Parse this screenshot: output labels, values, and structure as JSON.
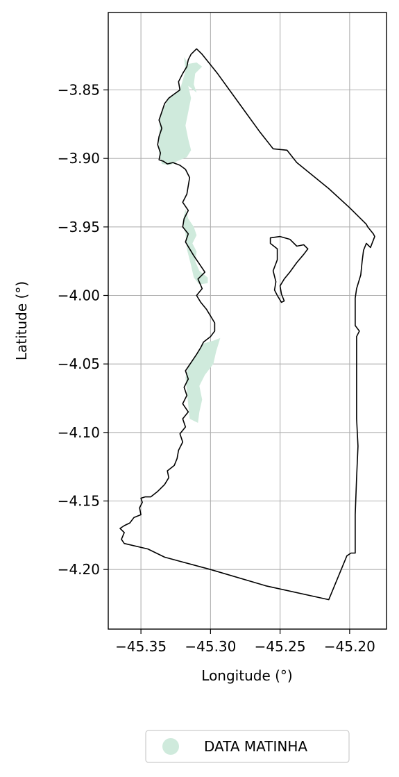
{
  "chart_data": {
    "type": "map",
    "xlabel": "Longitude (°)",
    "ylabel": "Latitude (°)",
    "xlim": [
      -45.3735,
      -45.1735
    ],
    "ylim": [
      -4.2435,
      -3.7935
    ],
    "x_ticks": [
      -45.35,
      -45.3,
      -45.25,
      -45.2
    ],
    "x_tick_labels": [
      "−45.35",
      "−45.30",
      "−45.25",
      "−45.20"
    ],
    "y_ticks": [
      -3.85,
      -3.9,
      -3.95,
      -4.0,
      -4.05,
      -4.1,
      -4.15,
      -4.2
    ],
    "y_tick_labels": [
      "−3.85",
      "−3.90",
      "−3.95",
      "−4.00",
      "−4.05",
      "−4.10",
      "−4.15",
      "−4.20"
    ],
    "grid": true,
    "legend": {
      "position": "bottom-center",
      "entries": [
        {
          "label": "DATA MATINHA",
          "color": "#cfeadc"
        }
      ]
    },
    "boundary_color": "#000000",
    "area_color": "#cfeadc",
    "boundary": [
      [
        -45.31,
        -3.82
      ],
      [
        -45.306,
        -3.824
      ],
      [
        -45.295,
        -3.838
      ],
      [
        -45.285,
        -3.852
      ],
      [
        -45.275,
        -3.866
      ],
      [
        -45.265,
        -3.88
      ],
      [
        -45.255,
        -3.893
      ],
      [
        -45.245,
        -3.894
      ],
      [
        -45.238,
        -3.903
      ],
      [
        -45.215,
        -3.922
      ],
      [
        -45.2,
        -3.936
      ],
      [
        -45.188,
        -3.948
      ],
      [
        -45.187,
        -3.95
      ],
      [
        -45.183,
        -3.955
      ],
      [
        -45.182,
        -3.957
      ],
      [
        -45.185,
        -3.965
      ],
      [
        -45.188,
        -3.962
      ],
      [
        -45.19,
        -3.967
      ],
      [
        -45.191,
        -3.975
      ],
      [
        -45.192,
        -3.985
      ],
      [
        -45.195,
        -3.995
      ],
      [
        -45.196,
        -4.002
      ],
      [
        -45.196,
        -4.01
      ],
      [
        -45.196,
        -4.022
      ],
      [
        -45.193,
        -4.026
      ],
      [
        -45.195,
        -4.03
      ],
      [
        -45.195,
        -4.06
      ],
      [
        -45.195,
        -4.09
      ],
      [
        -45.194,
        -4.11
      ],
      [
        -45.195,
        -4.133
      ],
      [
        -45.196,
        -4.16
      ],
      [
        -45.196,
        -4.188
      ],
      [
        -45.199,
        -4.188
      ],
      [
        -45.202,
        -4.19
      ],
      [
        -45.215,
        -4.222
      ],
      [
        -45.26,
        -4.212
      ],
      [
        -45.3,
        -4.2
      ],
      [
        -45.333,
        -4.191
      ],
      [
        -45.345,
        -4.185
      ],
      [
        -45.362,
        -4.181
      ],
      [
        -45.364,
        -4.178
      ],
      [
        -45.362,
        -4.173
      ],
      [
        -45.365,
        -4.17
      ],
      [
        -45.362,
        -4.168
      ],
      [
        -45.358,
        -4.166
      ],
      [
        -45.355,
        -4.162
      ],
      [
        -45.35,
        -4.16
      ],
      [
        -45.351,
        -4.155
      ],
      [
        -45.349,
        -4.151
      ],
      [
        -45.35,
        -4.148
      ],
      [
        -45.347,
        -4.147
      ],
      [
        -45.343,
        -4.147
      ],
      [
        -45.338,
        -4.143
      ],
      [
        -45.333,
        -4.138
      ],
      [
        -45.33,
        -4.133
      ],
      [
        -45.331,
        -4.128
      ],
      [
        -45.326,
        -4.124
      ],
      [
        -45.324,
        -4.119
      ],
      [
        -45.323,
        -4.113
      ],
      [
        -45.32,
        -4.107
      ],
      [
        -45.322,
        -4.101
      ],
      [
        -45.318,
        -4.096
      ],
      [
        -45.32,
        -4.09
      ],
      [
        -45.316,
        -4.085
      ],
      [
        -45.32,
        -4.079
      ],
      [
        -45.317,
        -4.073
      ],
      [
        -45.319,
        -4.067
      ],
      [
        -45.316,
        -4.061
      ],
      [
        -45.318,
        -4.055
      ],
      [
        -45.314,
        -4.049
      ],
      [
        -45.31,
        -4.043
      ],
      [
        -45.307,
        -4.038
      ],
      [
        -45.305,
        -4.034
      ],
      [
        -45.3,
        -4.03
      ],
      [
        -45.297,
        -4.026
      ],
      [
        -45.297,
        -4.02
      ],
      [
        -45.3,
        -4.015
      ],
      [
        -45.303,
        -4.01
      ],
      [
        -45.307,
        -4.005
      ],
      [
        -45.31,
        -4.0
      ],
      [
        -45.306,
        -3.995
      ],
      [
        -45.309,
        -3.988
      ],
      [
        -45.304,
        -3.983
      ],
      [
        -45.308,
        -3.977
      ],
      [
        -45.312,
        -3.971
      ],
      [
        -45.315,
        -3.966
      ],
      [
        -45.318,
        -3.961
      ],
      [
        -45.316,
        -3.955
      ],
      [
        -45.32,
        -3.95
      ],
      [
        -45.319,
        -3.944
      ],
      [
        -45.316,
        -3.938
      ],
      [
        -45.32,
        -3.932
      ],
      [
        -45.317,
        -3.926
      ],
      [
        -45.316,
        -3.92
      ],
      [
        -45.315,
        -3.914
      ],
      [
        -45.318,
        -3.908
      ],
      [
        -45.322,
        -3.905
      ],
      [
        -45.327,
        -3.903
      ],
      [
        -45.331,
        -3.904
      ],
      [
        -45.334,
        -3.902
      ],
      [
        -45.337,
        -3.901
      ],
      [
        -45.336,
        -3.896
      ],
      [
        -45.338,
        -3.89
      ],
      [
        -45.337,
        -3.884
      ],
      [
        -45.335,
        -3.878
      ],
      [
        -45.337,
        -3.872
      ],
      [
        -45.335,
        -3.866
      ],
      [
        -45.333,
        -3.86
      ],
      [
        -45.33,
        -3.856
      ],
      [
        -45.326,
        -3.853
      ],
      [
        -45.322,
        -3.85
      ],
      [
        -45.323,
        -3.844
      ],
      [
        -45.32,
        -3.838
      ],
      [
        -45.317,
        -3.833
      ],
      [
        -45.316,
        -3.828
      ],
      [
        -45.314,
        -3.824
      ],
      [
        -45.31,
        -3.82
      ]
    ],
    "hole": [
      [
        -45.257,
        -3.958
      ],
      [
        -45.25,
        -3.957
      ],
      [
        -45.243,
        -3.959
      ],
      [
        -45.238,
        -3.964
      ],
      [
        -45.233,
        -3.963
      ],
      [
        -45.23,
        -3.966
      ],
      [
        -45.233,
        -3.97
      ],
      [
        -45.238,
        -3.976
      ],
      [
        -45.243,
        -3.983
      ],
      [
        -45.247,
        -3.988
      ],
      [
        -45.25,
        -3.993
      ],
      [
        -45.249,
        -3.999
      ],
      [
        -45.247,
        -4.004
      ],
      [
        -45.249,
        -4.005
      ],
      [
        -45.252,
        -4.0
      ],
      [
        -45.254,
        -3.996
      ],
      [
        -45.253,
        -3.99
      ],
      [
        -45.255,
        -3.982
      ],
      [
        -45.252,
        -3.974
      ],
      [
        -45.252,
        -3.966
      ],
      [
        -45.257,
        -3.962
      ],
      [
        -45.257,
        -3.958
      ]
    ],
    "areas": [
      [
        [
          -45.319,
          -3.826
        ],
        [
          -45.316,
          -3.831
        ],
        [
          -45.31,
          -3.83
        ],
        [
          -45.306,
          -3.833
        ],
        [
          -45.311,
          -3.838
        ],
        [
          -45.312,
          -3.846
        ],
        [
          -45.31,
          -3.852
        ],
        [
          -45.316,
          -3.847
        ],
        [
          -45.314,
          -3.856
        ],
        [
          -45.316,
          -3.866
        ],
        [
          -45.318,
          -3.876
        ],
        [
          -45.316,
          -3.886
        ],
        [
          -45.314,
          -3.894
        ],
        [
          -45.317,
          -3.899
        ],
        [
          -45.324,
          -3.902
        ],
        [
          -45.329,
          -3.905
        ],
        [
          -45.335,
          -3.904
        ],
        [
          -45.337,
          -3.896
        ],
        [
          -45.337,
          -3.884
        ],
        [
          -45.336,
          -3.868
        ],
        [
          -45.33,
          -3.856
        ],
        [
          -45.322,
          -3.85
        ],
        [
          -45.318,
          -3.836
        ],
        [
          -45.319,
          -3.826
        ]
      ],
      [
        [
          -45.318,
          -3.937
        ],
        [
          -45.316,
          -3.944
        ],
        [
          -45.312,
          -3.95
        ],
        [
          -45.31,
          -3.956
        ],
        [
          -45.313,
          -3.962
        ],
        [
          -45.31,
          -3.968
        ],
        [
          -45.311,
          -3.975
        ],
        [
          -45.308,
          -3.982
        ],
        [
          -45.302,
          -3.987
        ],
        [
          -45.302,
          -3.991
        ],
        [
          -45.308,
          -3.992
        ],
        [
          -45.312,
          -3.987
        ],
        [
          -45.314,
          -3.978
        ],
        [
          -45.317,
          -3.966
        ],
        [
          -45.318,
          -3.955
        ],
        [
          -45.32,
          -3.946
        ],
        [
          -45.318,
          -3.937
        ]
      ],
      [
        [
          -45.293,
          -4.031
        ],
        [
          -45.298,
          -4.033
        ],
        [
          -45.305,
          -4.035
        ],
        [
          -45.31,
          -4.043
        ],
        [
          -45.316,
          -4.052
        ],
        [
          -45.318,
          -4.06
        ],
        [
          -45.317,
          -4.07
        ],
        [
          -45.316,
          -4.08
        ],
        [
          -45.315,
          -4.09
        ],
        [
          -45.309,
          -4.093
        ],
        [
          -45.308,
          -4.085
        ],
        [
          -45.306,
          -4.076
        ],
        [
          -45.308,
          -4.066
        ],
        [
          -45.304,
          -4.058
        ],
        [
          -45.298,
          -4.05
        ],
        [
          -45.296,
          -4.041
        ],
        [
          -45.293,
          -4.031
        ]
      ]
    ]
  }
}
